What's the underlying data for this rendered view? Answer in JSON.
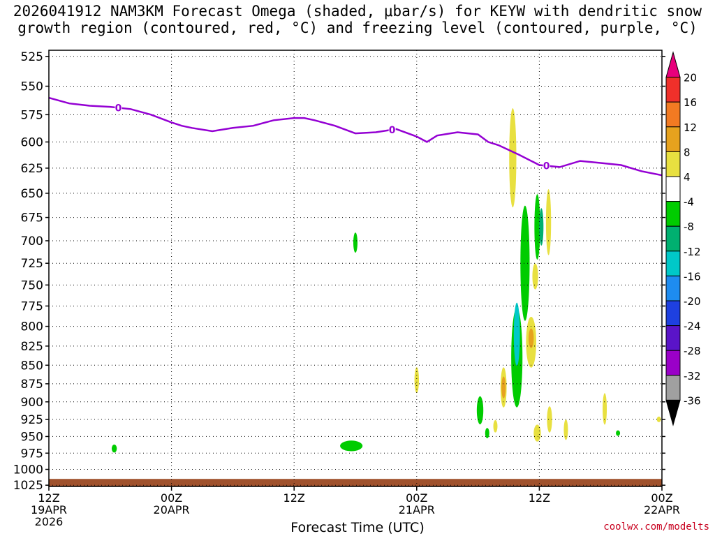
{
  "title": {
    "line1": "2026041912 NAM3KM Forecast Omega (shaded, μbar/s) for KEYW with dendritic snow",
    "line2": "growth region (contoured, red, °C) and freezing level (contoured, purple, °C)"
  },
  "xlabel": "Forecast Time (UTC)",
  "credit": "coolwx.com/modelts",
  "chart_data": {
    "type": "heatmap",
    "title": "2026041912 NAM3KM Forecast Omega (shaded, μbar/s) for KEYW with dendritic snow growth region (contoured, red, °C) and freezing level (contoured, purple, °C)",
    "xlabel": "Forecast Time (UTC)",
    "ylabel": "",
    "x_unit": "hours since 2026-04-19 12Z",
    "xlim": [
      0,
      60
    ],
    "x_ticks": [
      {
        "x": 0,
        "label": [
          "12Z",
          "19APR",
          "2026"
        ]
      },
      {
        "x": 12,
        "label": [
          "00Z",
          "20APR"
        ]
      },
      {
        "x": 24,
        "label": [
          "12Z"
        ]
      },
      {
        "x": 36,
        "label": [
          "00Z",
          "21APR"
        ]
      },
      {
        "x": 48,
        "label": [
          "12Z"
        ]
      },
      {
        "x": 60,
        "label": [
          "00Z",
          "22APR"
        ]
      }
    ],
    "y_ticks": [
      525,
      550,
      575,
      600,
      625,
      650,
      675,
      700,
      725,
      750,
      775,
      800,
      825,
      850,
      875,
      900,
      925,
      950,
      975,
      1000,
      1025
    ],
    "y_scale": "log-pressure, inverted (hPa)",
    "ylim": [
      520,
      1027
    ],
    "grid": true,
    "colorbar": {
      "labels": [
        "20",
        "16",
        "12",
        "8",
        "4",
        "-4",
        "-8",
        "-12",
        "-16",
        "-20",
        "-24",
        "-28",
        "-32",
        "-36"
      ],
      "colors": [
        "#e8007c",
        "#f0302a",
        "#f27a22",
        "#e6a21e",
        "#e8e040",
        "#ffffff",
        "#00cc00",
        "#00b070",
        "#00c8c8",
        "#1e8cf0",
        "#1e40e0",
        "#5a14c8",
        "#9a00c8",
        "#a0a0a0",
        "#000000"
      ]
    },
    "omega_features": [
      {
        "hour": 30,
        "pressure": 702,
        "dt": 0.12,
        "dp": 22,
        "level": -5
      },
      {
        "hour": 45.4,
        "pressure": 615,
        "dt": 0.35,
        "dp": 95,
        "level": 5
      },
      {
        "hour": 47.8,
        "pressure": 685,
        "dt": 0.28,
        "dp": 70,
        "level": -5
      },
      {
        "hour": 46.6,
        "pressure": 725,
        "dt": 0.45,
        "dp": 130,
        "level": -6
      },
      {
        "hour": 48.2,
        "pressure": 685,
        "dt": 0.2,
        "dp": 40,
        "level": -9
      },
      {
        "hour": 48.9,
        "pressure": 680,
        "dt": 0.25,
        "dp": 70,
        "level": 5
      },
      {
        "hour": 45.8,
        "pressure": 840,
        "dt": 0.55,
        "dp": 130,
        "level": -6
      },
      {
        "hour": 45.8,
        "pressure": 810,
        "dt": 0.3,
        "dp": 80,
        "level": -14
      },
      {
        "hour": 47.2,
        "pressure": 820,
        "dt": 0.5,
        "dp": 65,
        "level": 5
      },
      {
        "hour": 47.2,
        "pressure": 815,
        "dt": 0.25,
        "dp": 25,
        "level": 11
      },
      {
        "hour": 44.5,
        "pressure": 880,
        "dt": 0.3,
        "dp": 55,
        "level": 5
      },
      {
        "hour": 44.5,
        "pressure": 880,
        "dt": 0.15,
        "dp": 30,
        "level": 9
      },
      {
        "hour": 47.6,
        "pressure": 740,
        "dt": 0.28,
        "dp": 30,
        "level": 5
      },
      {
        "hour": 42.2,
        "pressure": 912,
        "dt": 0.32,
        "dp": 40,
        "level": -6
      },
      {
        "hour": 42.9,
        "pressure": 945,
        "dt": 0.1,
        "dp": 15,
        "level": -5
      },
      {
        "hour": 36,
        "pressure": 870,
        "dt": 0.22,
        "dp": 35,
        "level": 5
      },
      {
        "hour": 43.7,
        "pressure": 935,
        "dt": 0.2,
        "dp": 18,
        "level": 5
      },
      {
        "hour": 47.8,
        "pressure": 945,
        "dt": 0.35,
        "dp": 25,
        "level": 5
      },
      {
        "hour": 49,
        "pressure": 925,
        "dt": 0.25,
        "dp": 38,
        "level": 5
      },
      {
        "hour": 50.6,
        "pressure": 940,
        "dt": 0.2,
        "dp": 30,
        "level": 5
      },
      {
        "hour": 54.4,
        "pressure": 910,
        "dt": 0.18,
        "dp": 45,
        "level": 5
      },
      {
        "hour": 6.4,
        "pressure": 968,
        "dt": 0.25,
        "dp": 12,
        "level": -6
      },
      {
        "hour": 29.6,
        "pressure": 964,
        "dt": 1.1,
        "dp": 16,
        "level": -6
      },
      {
        "hour": 55.7,
        "pressure": 945,
        "dt": 0.05,
        "dp": 6,
        "level": -5
      },
      {
        "hour": 59.7,
        "pressure": 925,
        "dt": 0.07,
        "dp": 4,
        "level": 5
      }
    ],
    "freezing_level": {
      "label": "0",
      "x": [
        0,
        2,
        4,
        6,
        8,
        10,
        12,
        13,
        14,
        16,
        18,
        20,
        22,
        24,
        25,
        26,
        28,
        30,
        32,
        34,
        36,
        37,
        38,
        40,
        42,
        43,
        44,
        46,
        48,
        50,
        52,
        54,
        56,
        58,
        60
      ],
      "p": [
        560,
        565,
        567,
        568,
        570,
        575,
        582,
        585,
        587,
        590,
        587,
        585,
        580,
        578,
        578,
        580,
        585,
        592,
        591,
        588,
        595,
        600,
        594,
        591,
        593,
        600,
        603,
        612,
        622,
        624,
        618,
        620,
        622,
        628,
        632
      ]
    },
    "terrain": {
      "top_pressure": 1015,
      "color": "#a0522d"
    }
  }
}
